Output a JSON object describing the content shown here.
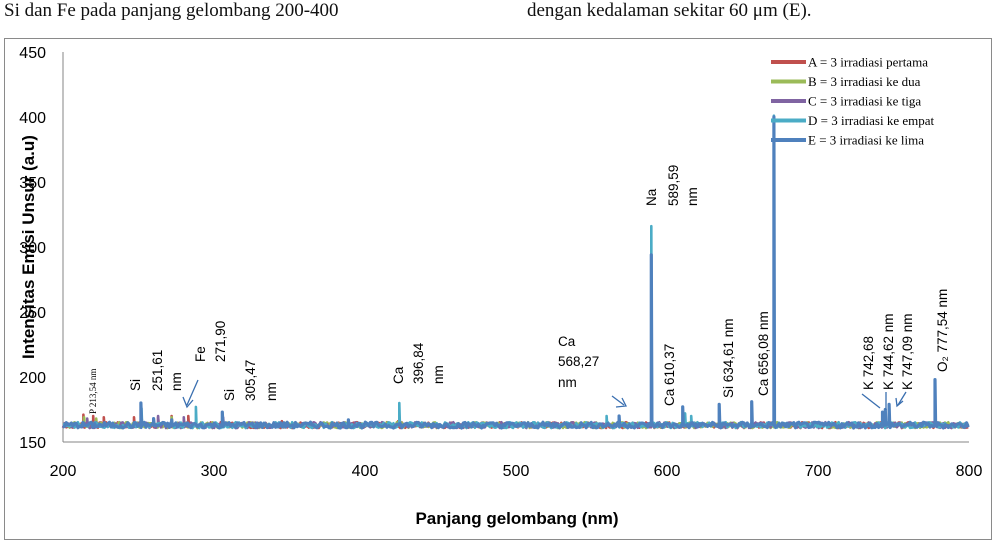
{
  "page": {
    "header_left": "Si dan Fe pada panjang gelombang 200-400",
    "header_right": "dengan kedalaman sekitar 60 μm (E)."
  },
  "chart_data": {
    "type": "line",
    "xlabel": "Panjang gelombang (nm)",
    "ylabel": "Intensitas Emisi Unsur (a.u)",
    "xlim": [
      200,
      800
    ],
    "ylim": [
      150,
      450
    ],
    "x_ticks": [
      200,
      300,
      400,
      500,
      600,
      700,
      800
    ],
    "y_ticks": [
      150,
      200,
      250,
      300,
      350,
      400,
      450
    ],
    "y_tick_labels": [
      "150",
      "200",
      "250",
      "300",
      "350",
      "400",
      "450"
    ],
    "grid": false,
    "legend_position": "top-right",
    "baseline": 163,
    "series": [
      {
        "name": "A = 3 irradiasi pertama",
        "color": "#c0504d",
        "peaks": [
          [
            213.5,
            171
          ],
          [
            220,
            170
          ],
          [
            227,
            169
          ],
          [
            247,
            169
          ],
          [
            251.6,
            170
          ],
          [
            263,
            169
          ],
          [
            271.9,
            170
          ],
          [
            283,
            170
          ],
          [
            305.5,
            169
          ],
          [
            345,
            166
          ],
          [
            422,
            166
          ],
          [
            560,
            165
          ],
          [
            589.6,
            168
          ],
          [
            612,
            165
          ],
          [
            670.8,
            166
          ],
          [
            777.5,
            167
          ]
        ]
      },
      {
        "name": "B = 3 irradiasi ke dua",
        "color": "#9bbb59",
        "peaks": [
          [
            214,
            169
          ],
          [
            222,
            168
          ],
          [
            252,
            170
          ],
          [
            272,
            169
          ],
          [
            306,
            168
          ],
          [
            423,
            166
          ],
          [
            589.6,
            172
          ],
          [
            670.8,
            170
          ],
          [
            777.5,
            166
          ]
        ]
      },
      {
        "name": "C = 3 irradiasi ke tiga",
        "color": "#8064a2",
        "peaks": [
          [
            216,
            168
          ],
          [
            252,
            171
          ],
          [
            263,
            170
          ],
          [
            280,
            169
          ],
          [
            306,
            169
          ],
          [
            423,
            167
          ],
          [
            589.6,
            175
          ],
          [
            670.8,
            173
          ],
          [
            777.5,
            167
          ]
        ]
      },
      {
        "name": "D = 3 irradiasi ke empat",
        "color": "#4bacc6",
        "peaks": [
          [
            252,
            176
          ],
          [
            288,
            177
          ],
          [
            305.5,
            172
          ],
          [
            422.7,
            180
          ],
          [
            560,
            170
          ],
          [
            589.6,
            316
          ],
          [
            612,
            172
          ],
          [
            616,
            170
          ],
          [
            670.8,
            401
          ],
          [
            777.5,
            175
          ]
        ]
      },
      {
        "name": "E = 3 irradiasi ke lima",
        "color": "#4f81bd",
        "peaks": [
          [
            251.6,
            180
          ],
          [
            260,
            168
          ],
          [
            272,
            167
          ],
          [
            305.5,
            173
          ],
          [
            389,
            167
          ],
          [
            568.3,
            170
          ],
          [
            589.6,
            294
          ],
          [
            610.4,
            177
          ],
          [
            634.6,
            179
          ],
          [
            656.1,
            181
          ],
          [
            670.8,
            400
          ],
          [
            742.7,
            173
          ],
          [
            744.6,
            175
          ],
          [
            747.1,
            179
          ],
          [
            777.5,
            198
          ]
        ]
      }
    ],
    "annotations": {
      "p": "P 213,54 nm",
      "si1_a": "Si",
      "si1_b": "251,61",
      "si1_c": "nm",
      "fe_a": "Fe",
      "fe_b": "271,90",
      "si2_a": "Si",
      "si2_b": "305,47",
      "si2_c": "nm",
      "ca1_a": "Ca",
      "ca1_b": "396,84",
      "ca1_c": "nm",
      "ca2_a": "Ca",
      "ca2_b": "568,27",
      "ca2_c": "nm",
      "na_a": "Na",
      "na_b": "589,59",
      "na_c": "nm",
      "ca3": "Ca 610,37",
      "si3": "Si 634,61 nm",
      "ca4": "Ca 656,08 nm",
      "k1": "K 742,68",
      "k2": "K 744,62 nm",
      "k3": "K 747,09 nm",
      "o2": "O₂ 777,54 nm"
    }
  }
}
